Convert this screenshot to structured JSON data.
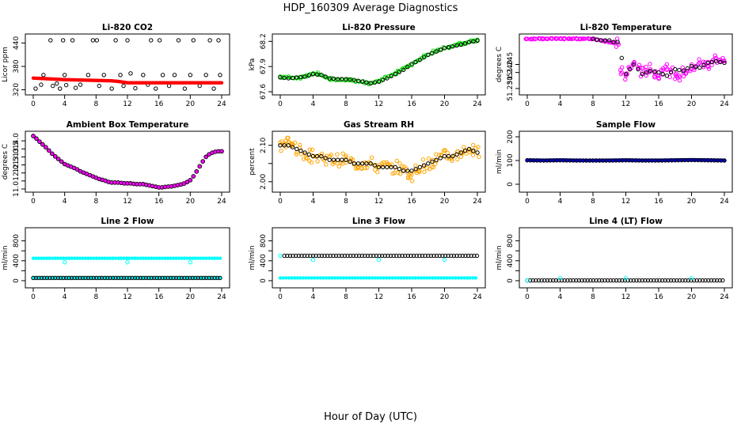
{
  "figure": {
    "title": "HDP_160309  Average Diagnostics",
    "xlabel": "Hour of Day (UTC)"
  },
  "chart_data": [
    {
      "type": "scatter",
      "title": "Li-820 CO2",
      "ylabel": "Licor ppm",
      "xlim": [
        0,
        24
      ],
      "ylim": [
        315,
        455
      ],
      "xticks": [
        0,
        4,
        8,
        12,
        16,
        20,
        24
      ],
      "yticks": [
        320,
        380,
        440
      ],
      "series": [
        {
          "name": "averages",
          "color": "#000000",
          "style": "open",
          "x": [
            0.3,
            1.0,
            1.3,
            2.2,
            2.5,
            3.0,
            3.4,
            3.8,
            4.0,
            4.2,
            5.0,
            5.4,
            6.0,
            7.0,
            7.6,
            8.1,
            8.4,
            9.0,
            10.0,
            10.5,
            11.1,
            11.5,
            12.0,
            12.4,
            13.0,
            14.0,
            14.6,
            15.0,
            15.6,
            16.1,
            16.5,
            17.3,
            18.0,
            18.5,
            19.3,
            20.0,
            20.4,
            21.2,
            22.0,
            22.5,
            23.0,
            23.6,
            23.8
          ],
          "y": [
            323,
            333,
            358,
            447,
            330,
            336,
            323,
            447,
            358,
            332,
            447,
            325,
            333,
            358,
            447,
            447,
            330,
            358,
            323,
            447,
            358,
            330,
            447,
            362,
            324,
            358,
            333,
            447,
            323,
            447,
            358,
            330,
            358,
            447,
            323,
            358,
            447,
            330,
            358,
            447,
            323,
            447,
            358
          ]
        },
        {
          "name": "samples",
          "color": "#ff0000",
          "style": "filled",
          "x": [
            0,
            2,
            4,
            6,
            8,
            10,
            11,
            12,
            14,
            16,
            18,
            20,
            22,
            24
          ],
          "y": [
            350,
            348,
            346,
            345,
            344,
            343,
            341,
            338,
            338,
            338,
            338,
            338,
            338,
            338
          ]
        }
      ]
    },
    {
      "type": "scatter",
      "title": "Li-820 Pressure",
      "ylabel": "kPa",
      "xlim": [
        0,
        24
      ],
      "ylim": [
        67.6,
        68.25
      ],
      "xticks": [
        0,
        4,
        8,
        12,
        16,
        20,
        24
      ],
      "yticks": [
        67.6,
        67.9,
        68.2
      ],
      "series": [
        {
          "name": "samples",
          "color": "#00dd00",
          "style": "open",
          "x": [
            0,
            2,
            4,
            5,
            6,
            8,
            10,
            11,
            12,
            14,
            16,
            18,
            20,
            22,
            24
          ],
          "y": [
            67.78,
            67.76,
            67.82,
            67.8,
            67.75,
            67.74,
            67.72,
            67.7,
            67.73,
            67.82,
            67.93,
            68.04,
            68.12,
            68.17,
            68.22
          ]
        },
        {
          "name": "averages",
          "color": "#000000",
          "style": "open",
          "x": [
            0,
            1,
            2,
            3,
            4,
            5,
            6,
            7,
            8,
            9,
            10,
            11,
            12,
            13,
            14,
            15,
            16,
            17,
            18,
            19,
            20,
            21,
            22,
            23,
            24
          ],
          "y": [
            67.77,
            67.76,
            67.77,
            67.78,
            67.81,
            67.8,
            67.76,
            67.75,
            67.75,
            67.74,
            67.72,
            67.7,
            67.72,
            67.76,
            67.81,
            67.86,
            67.93,
            67.98,
            68.04,
            68.08,
            68.12,
            68.14,
            68.16,
            68.19,
            68.21
          ]
        }
      ]
    },
    {
      "type": "scatter",
      "title": "Li-820 Temperature",
      "ylabel": "degrees C",
      "xlim": [
        0,
        24
      ],
      "ylim": [
        51.228,
        51.262
      ],
      "xticks": [
        0,
        4,
        8,
        12,
        16,
        20,
        24
      ],
      "yticks": [
        51.23,
        51.24,
        51.245
      ],
      "ytick_labels": [
        "51.230",
        "51.240",
        "51.245"
      ],
      "series": [
        {
          "name": "samples",
          "color": "#ff00ff",
          "style": "open",
          "x": [
            0,
            2,
            4,
            6,
            8,
            9,
            10,
            11,
            11.5,
            12,
            13,
            14,
            15,
            16,
            17,
            18,
            19,
            20,
            21,
            22,
            23,
            24
          ],
          "y": [
            51.261,
            51.261,
            51.261,
            51.261,
            51.261,
            51.26,
            51.259,
            51.258,
            51.24,
            51.238,
            51.246,
            51.24,
            51.242,
            51.238,
            51.245,
            51.236,
            51.24,
            51.242,
            51.246,
            51.244,
            51.249,
            51.247
          ]
        },
        {
          "name": "averages",
          "color": "#000000",
          "style": "open",
          "x": [
            8,
            9,
            10,
            10.5,
            11,
            12,
            13,
            14,
            15,
            16,
            17,
            18,
            19,
            20,
            21,
            22,
            23,
            24
          ],
          "y": [
            51.261,
            51.26,
            51.26,
            51.259,
            51.259,
            51.239,
            51.245,
            51.239,
            51.241,
            51.24,
            51.238,
            51.242,
            51.241,
            51.244,
            51.243,
            51.246,
            51.247,
            51.246
          ]
        }
      ]
    },
    {
      "type": "line",
      "title": "Ambient Box Temperature",
      "ylabel": "degrees C",
      "xlim": [
        0,
        24
      ],
      "ylim": [
        11,
        14.4
      ],
      "xticks": [
        0,
        4,
        8,
        12,
        16,
        20,
        24
      ],
      "yticks": [
        11.0,
        11.5,
        12.0,
        12.5,
        13.0,
        13.5,
        14.0
      ],
      "ytick_labels": [
        "11.0",
        "",
        "12.0",
        "12.5",
        "13.0",
        "13.5",
        "14.0"
      ],
      "series": [
        {
          "name": "temperature",
          "color": "#ff00ff",
          "marker_color": "#000000",
          "x": [
            0,
            0.5,
            1,
            1.5,
            2,
            2.5,
            3,
            3.5,
            4,
            4.5,
            5,
            5.5,
            6,
            6.5,
            7,
            7.5,
            8,
            8.5,
            9,
            9.5,
            10,
            10.5,
            11,
            11.5,
            12,
            12.5,
            13,
            13.5,
            14,
            14.5,
            15,
            15.5,
            16,
            16.5,
            17,
            17.5,
            18,
            18.5,
            19,
            19.5,
            20,
            20.5,
            21,
            21.5,
            22,
            22.5,
            23,
            23.5,
            24
          ],
          "y": [
            14.3,
            14.1,
            13.85,
            13.65,
            13.4,
            13.15,
            12.95,
            12.75,
            12.55,
            12.45,
            12.35,
            12.25,
            12.1,
            12.0,
            11.9,
            11.8,
            11.7,
            11.6,
            11.55,
            11.45,
            11.4,
            11.4,
            11.4,
            11.35,
            11.35,
            11.35,
            11.3,
            11.3,
            11.3,
            11.25,
            11.2,
            11.15,
            11.1,
            11.1,
            11.15,
            11.15,
            11.2,
            11.25,
            11.3,
            11.4,
            11.55,
            11.85,
            12.25,
            12.65,
            13.0,
            13.2,
            13.3,
            13.35,
            13.35
          ]
        }
      ]
    },
    {
      "type": "scatter",
      "title": "Gas Stream RH",
      "ylabel": "percent",
      "xlim": [
        0,
        24
      ],
      "ylim": [
        1.98,
        2.13
      ],
      "xticks": [
        0,
        4,
        8,
        12,
        16,
        20,
        24
      ],
      "yticks": [
        2.0,
        2.05,
        2.1
      ],
      "ytick_labels": [
        "2.00",
        "",
        "2.10"
      ],
      "series": [
        {
          "name": "samples",
          "color": "#ffa500",
          "style": "open",
          "x": [
            0,
            1,
            2,
            3,
            4,
            5,
            6,
            7,
            8,
            9,
            10,
            11,
            12,
            13,
            14,
            15,
            16,
            17,
            18,
            19,
            20,
            21,
            22,
            23,
            24
          ],
          "y": [
            2.1,
            2.11,
            2.09,
            2.08,
            2.07,
            2.07,
            2.06,
            2.06,
            2.06,
            2.05,
            2.05,
            2.05,
            2.04,
            2.04,
            2.04,
            2.03,
            2.02,
            2.04,
            2.05,
            2.06,
            2.07,
            2.07,
            2.08,
            2.09,
            2.08
          ]
        },
        {
          "name": "averages",
          "color": "#000000",
          "style": "open",
          "x": [
            0,
            1,
            2,
            3,
            4,
            5,
            6,
            7,
            8,
            9,
            10,
            11,
            12,
            13,
            14,
            15,
            16,
            17,
            18,
            19,
            20,
            21,
            22,
            23,
            24
          ],
          "y": [
            2.1,
            2.1,
            2.09,
            2.08,
            2.07,
            2.07,
            2.06,
            2.06,
            2.06,
            2.05,
            2.05,
            2.05,
            2.04,
            2.04,
            2.04,
            2.03,
            2.03,
            2.04,
            2.05,
            2.06,
            2.07,
            2.07,
            2.08,
            2.09,
            2.08
          ]
        }
      ]
    },
    {
      "type": "scatter",
      "title": "Sample Flow",
      "ylabel": "ml/min",
      "xlim": [
        0,
        24
      ],
      "ylim": [
        -20,
        210
      ],
      "xticks": [
        0,
        4,
        8,
        12,
        16,
        20,
        24
      ],
      "yticks": [
        0,
        100,
        200
      ],
      "series": [
        {
          "name": "samples",
          "color": "#0000cd",
          "style": "filled",
          "x": [
            0,
            2,
            4,
            6,
            8,
            10,
            12,
            14,
            16,
            18,
            20,
            22,
            24
          ],
          "y": [
            102,
            101,
            102,
            101,
            100,
            101,
            102,
            101,
            101,
            102,
            103,
            102,
            101
          ]
        },
        {
          "name": "averages",
          "color": "#000000",
          "style": "open",
          "x": [
            0,
            2,
            4,
            6,
            8,
            10,
            12,
            14,
            16,
            18,
            20,
            22,
            24
          ],
          "y": [
            101,
            100,
            101,
            100,
            100,
            100,
            101,
            100,
            100,
            101,
            102,
            101,
            100
          ]
        }
      ]
    },
    {
      "type": "scatter",
      "title": "Line 2 Flow",
      "ylabel": "ml/min",
      "xlim": [
        0,
        24
      ],
      "ylim": [
        -80,
        1000
      ],
      "xticks": [
        0,
        4,
        8,
        12,
        16,
        20,
        24
      ],
      "yticks": [
        0,
        200,
        400,
        600,
        800
      ],
      "ytick_labels": [
        "0",
        "",
        "400",
        "",
        "800"
      ],
      "series": [
        {
          "name": "high",
          "color": "#00ffff",
          "style": "filled",
          "x": [
            0,
            24
          ],
          "y": [
            450,
            450
          ]
        },
        {
          "name": "low",
          "color": "#00ffff",
          "style": "filled",
          "x": [
            0,
            24
          ],
          "y": [
            55,
            55
          ]
        },
        {
          "name": "averages",
          "color": "#000000",
          "style": "open",
          "x": [
            0,
            24
          ],
          "y": [
            55,
            55
          ]
        },
        {
          "name": "outliers",
          "color": "#00ffff",
          "style": "open",
          "x": [
            4,
            12,
            20
          ],
          "y": [
            370,
            370,
            370
          ]
        }
      ]
    },
    {
      "type": "scatter",
      "title": "Line 3 Flow",
      "ylabel": "ml/min",
      "xlim": [
        0,
        24
      ],
      "ylim": [
        -80,
        1000
      ],
      "xticks": [
        0,
        4,
        8,
        12,
        16,
        20,
        24
      ],
      "yticks": [
        0,
        200,
        400,
        600,
        800
      ],
      "ytick_labels": [
        "0",
        "",
        "400",
        "",
        "800"
      ],
      "series": [
        {
          "name": "high",
          "color": "#000000",
          "style": "open",
          "x": [
            0.5,
            24
          ],
          "y": [
            500,
            500
          ]
        },
        {
          "name": "low",
          "color": "#00ffff",
          "style": "filled",
          "x": [
            0,
            24
          ],
          "y": [
            55,
            55
          ]
        },
        {
          "name": "outliers",
          "color": "#00ffff",
          "style": "open",
          "x": [
            0,
            4,
            12,
            20
          ],
          "y": [
            500,
            420,
            420,
            420
          ]
        }
      ]
    },
    {
      "type": "scatter",
      "title": "Line 4 (LT) Flow",
      "ylabel": "ml/min",
      "xlim": [
        0,
        24
      ],
      "ylim": [
        -80,
        1000
      ],
      "xticks": [
        0,
        4,
        8,
        12,
        16,
        20,
        24
      ],
      "yticks": [
        0,
        200,
        400,
        600,
        800
      ],
      "ytick_labels": [
        "0",
        "",
        "400",
        "",
        "800"
      ],
      "series": [
        {
          "name": "averages",
          "color": "#000000",
          "style": "open",
          "x": [
            0,
            24
          ],
          "y": [
            5,
            5
          ]
        },
        {
          "name": "outliers",
          "color": "#00ffff",
          "style": "open",
          "x": [
            0,
            4,
            12,
            20
          ],
          "y": [
            5,
            50,
            50,
            50
          ]
        }
      ]
    }
  ]
}
